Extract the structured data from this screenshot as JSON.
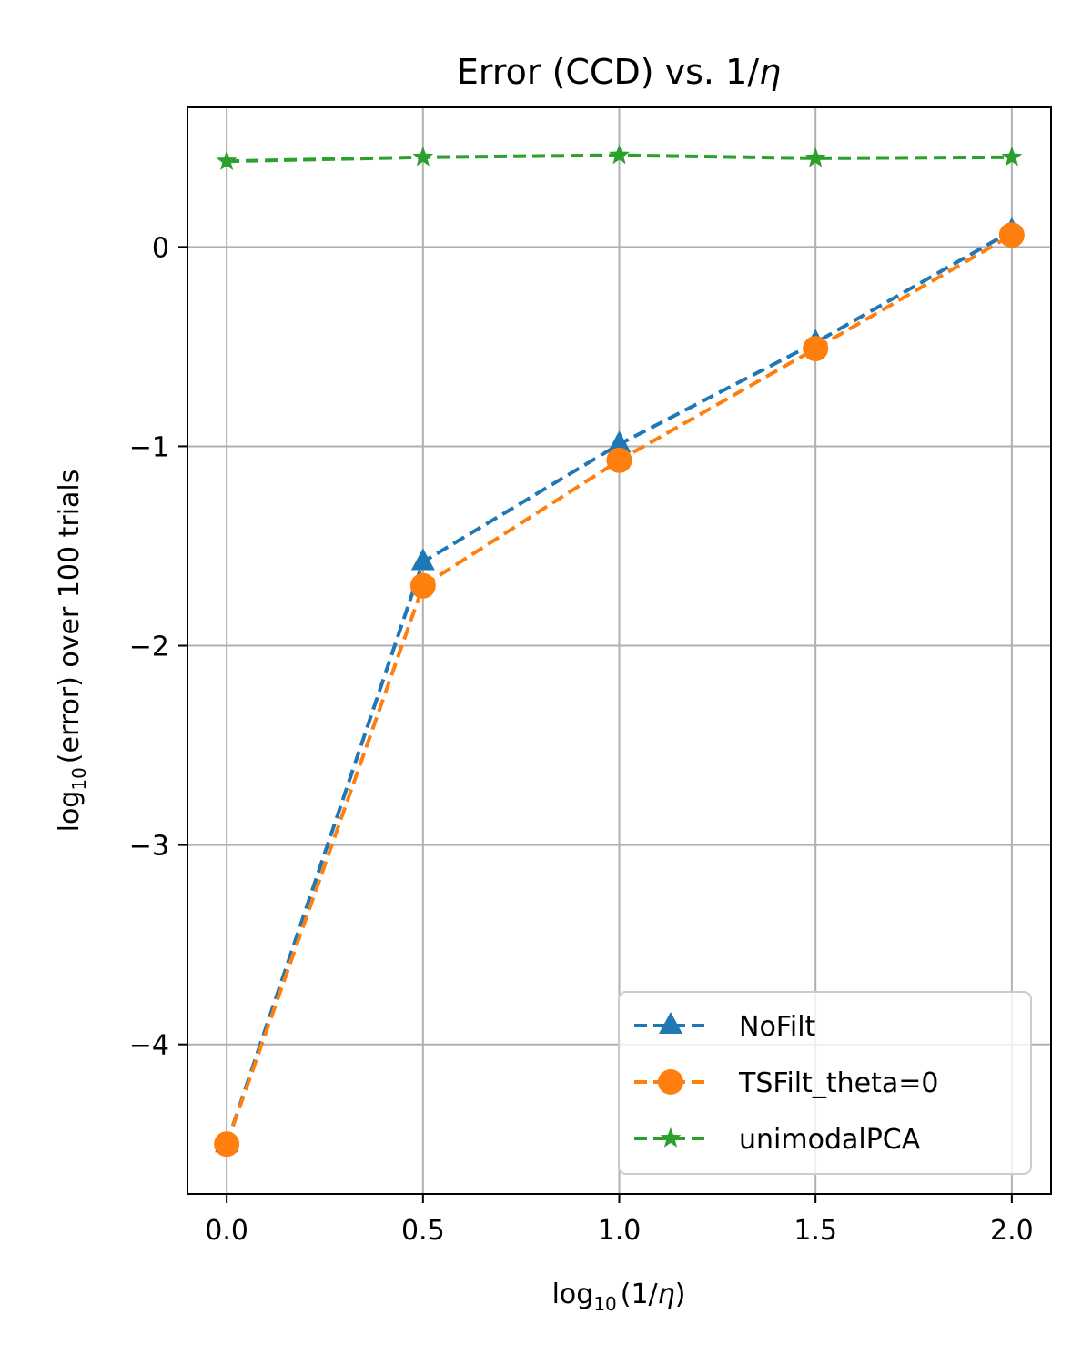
{
  "chart_data": {
    "type": "line",
    "title_text": "Error (CCD) vs. 1/",
    "title_symbol": "η",
    "xlabel_prefix": "log",
    "xlabel_sub": "10",
    "xlabel_suffix": "(1/",
    "xlabel_symbol": "η",
    "xlabel_close": ")",
    "ylabel_prefix": "log",
    "ylabel_sub": "10",
    "ylabel_suffix": "(error) over 100 trials",
    "x": [
      0.0,
      0.5,
      1.0,
      1.5,
      2.0
    ],
    "xticks": [
      "0.0",
      "0.5",
      "1.0",
      "1.5",
      "2.0"
    ],
    "yticks": [
      "0",
      "−1",
      "−2",
      "−3",
      "−4"
    ],
    "ytick_values": [
      0,
      -1,
      -2,
      -3,
      -4
    ],
    "xlim": [
      -0.1,
      2.1
    ],
    "ylim": [
      -4.75,
      0.7
    ],
    "grid": true,
    "legend_position": "lower-right",
    "series": [
      {
        "name": "NoFilt",
        "color": "#1f77b4",
        "marker": "triangle",
        "values": [
          -4.5,
          -1.58,
          -0.99,
          -0.48,
          0.08
        ]
      },
      {
        "name": "TSFilt_theta=0",
        "color": "#ff7f0e",
        "marker": "circle",
        "values": [
          -4.5,
          -1.7,
          -1.07,
          -0.51,
          0.06
        ]
      },
      {
        "name": "unimodalPCA",
        "color": "#2ca02c",
        "marker": "star",
        "values": [
          0.43,
          0.45,
          0.46,
          0.445,
          0.45
        ]
      }
    ]
  }
}
